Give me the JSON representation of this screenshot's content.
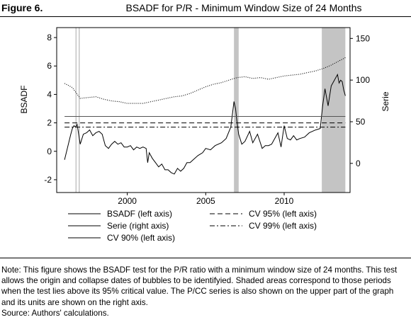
{
  "figure": {
    "label": "Figure 6.",
    "title": "BSADF for P/R - Minimum Window Size of 24 Months"
  },
  "notes": {
    "text": "Note: This figure shows the BSADF test for the P/R ratio with a minimum window size of 24 months. This test allows the origin and collapse dates of bubbles to be identifyied. Shaded areas correspond to those periods when the test lies above its 95% critical value. The P/CC series is also shown on the upper part of the graph and its units are shown on the right axis.",
    "source": "Source: Authors' calculations."
  },
  "chart_data": {
    "type": "line",
    "title": "BSADF for P/R - Minimum Window Size of 24 Months",
    "ylabel": "BSADF",
    "ylabel_right": "Serie",
    "xlim": [
      1995.5,
      2014.2
    ],
    "ylim": [
      -2.9,
      8.7
    ],
    "ylim_right": [
      -35,
      163
    ],
    "x_ticks": [
      2000,
      2005,
      2010
    ],
    "y_ticks": [
      -2,
      0,
      2,
      4,
      6,
      8
    ],
    "y_ticks_right": [
      0,
      50,
      100,
      150
    ],
    "grid": false,
    "shaded_periods": [
      [
        1996.7,
        1996.75
      ],
      [
        1996.9,
        1996.95
      ],
      [
        2006.8,
        2007.1
      ],
      [
        2012.4,
        2013.9
      ]
    ],
    "series": [
      {
        "name": "BSADF (left axis)",
        "axis": "left",
        "style": "solid",
        "x": [
          1996.0,
          1996.2,
          1996.4,
          1996.5,
          1996.6,
          1996.7,
          1996.8,
          1996.9,
          1997.0,
          1997.2,
          1997.4,
          1997.6,
          1997.8,
          1998.0,
          1998.2,
          1998.4,
          1998.5,
          1998.6,
          1998.8,
          1999.0,
          1999.2,
          1999.4,
          1999.6,
          1999.8,
          2000.0,
          2000.2,
          2000.4,
          2000.6,
          2000.8,
          2001.0,
          2001.2,
          2001.3,
          2001.4,
          2001.6,
          2001.8,
          2002.0,
          2002.2,
          2002.4,
          2002.6,
          2002.8,
          2003.0,
          2003.2,
          2003.4,
          2003.6,
          2003.8,
          2004.0,
          2004.2,
          2004.5,
          2004.8,
          2005.0,
          2005.3,
          2005.6,
          2006.0,
          2006.3,
          2006.6,
          2006.8,
          2006.9,
          2007.0,
          2007.1,
          2007.3,
          2007.5,
          2007.8,
          2008.0,
          2008.3,
          2008.6,
          2008.8,
          2009.0,
          2009.2,
          2009.4,
          2009.6,
          2009.8,
          2010.0,
          2010.2,
          2010.4,
          2010.6,
          2010.8,
          2011.0,
          2011.3,
          2011.6,
          2012.0,
          2012.3,
          2012.45,
          2012.6,
          2012.8,
          2013.0,
          2013.2,
          2013.4,
          2013.5,
          2013.6,
          2013.7,
          2013.8,
          2013.9
        ],
        "values": [
          -0.6,
          0.3,
          1.2,
          1.6,
          1.8,
          1.7,
          1.9,
          1.2,
          0.5,
          1.2,
          1.3,
          1.5,
          1.1,
          1.3,
          1.4,
          1.2,
          0.8,
          0.4,
          0.2,
          0.5,
          0.7,
          0.5,
          0.6,
          0.3,
          0.3,
          0.4,
          0.1,
          0.3,
          0.2,
          0.3,
          0.2,
          -0.8,
          -0.1,
          -0.5,
          -0.8,
          -1.1,
          -0.9,
          -1.3,
          -1.3,
          -1.5,
          -1.6,
          -1.2,
          -1.4,
          -1.2,
          -0.8,
          -0.8,
          -0.6,
          -0.3,
          -0.1,
          0.2,
          0.1,
          0.4,
          0.6,
          0.9,
          1.7,
          3.5,
          3.0,
          2.0,
          1.2,
          0.5,
          0.7,
          1.4,
          0.6,
          1.2,
          0.2,
          0.4,
          0.4,
          0.5,
          0.9,
          1.3,
          0.3,
          1.8,
          0.9,
          0.8,
          1.1,
          0.8,
          0.9,
          1.0,
          1.3,
          1.5,
          1.6,
          3.2,
          4.4,
          3.2,
          4.6,
          5.0,
          5.4,
          4.8,
          5.0,
          4.9,
          4.3,
          3.9
        ]
      },
      {
        "name": "Serie (right axis)",
        "axis": "right",
        "style": "dotted",
        "x": [
          1996.0,
          1996.5,
          1997.0,
          1997.5,
          1998.0,
          1998.5,
          1999.0,
          1999.5,
          2000.0,
          2000.5,
          2001.0,
          2001.5,
          2002.0,
          2002.5,
          2003.0,
          2003.5,
          2004.0,
          2004.5,
          2005.0,
          2005.5,
          2006.0,
          2006.5,
          2007.0,
          2007.5,
          2008.0,
          2008.5,
          2009.0,
          2009.5,
          2010.0,
          2010.5,
          2011.0,
          2011.5,
          2012.0,
          2012.5,
          2013.0,
          2013.5,
          2013.9
        ],
        "values": [
          96,
          91,
          78,
          79,
          80,
          77,
          75,
          74,
          72,
          72,
          72,
          74,
          76,
          78,
          80,
          81,
          84,
          88,
          92,
          95,
          97,
          100,
          103,
          104,
          102,
          103,
          101,
          103,
          105,
          106,
          107,
          109,
          111,
          114,
          118,
          123,
          127
        ]
      },
      {
        "name": "CV 90% (left axis)",
        "axis": "left",
        "style": "solid",
        "x": [
          1996.0,
          2013.9
        ],
        "values": [
          2.45,
          2.45
        ]
      },
      {
        "name": "CV 95% (left axis)",
        "axis": "left",
        "style": "dashed",
        "x": [
          1996.0,
          2013.9
        ],
        "values": [
          2.0,
          2.0
        ]
      },
      {
        "name": "CV 99% (left axis)",
        "axis": "left",
        "style": "dash-dot",
        "x": [
          1996.0,
          2013.9
        ],
        "values": [
          1.7,
          1.7
        ]
      }
    ],
    "legend_columns": [
      [
        "BSADF (left axis)",
        "Serie (right axis)",
        "CV 90% (left axis)"
      ],
      [
        "CV 95% (left axis)",
        "CV 99% (left axis)"
      ]
    ]
  }
}
